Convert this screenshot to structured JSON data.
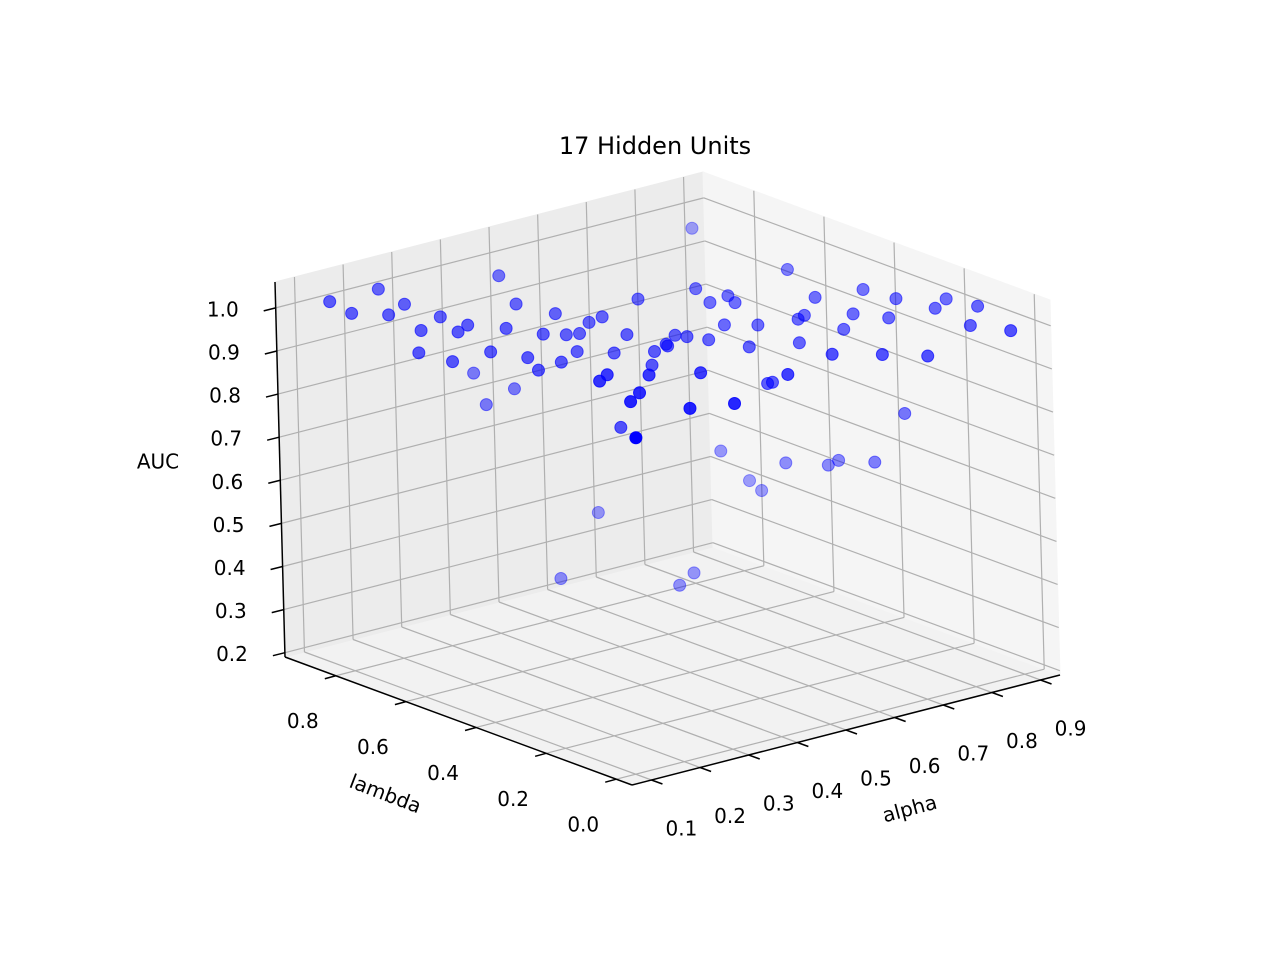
{
  "chart_data": {
    "type": "scatter3d",
    "title": "17 Hidden Units",
    "xlabel": "alpha",
    "ylabel": "lambda",
    "zlabel": "AUC",
    "xlim": [
      0.06,
      0.94
    ],
    "ylim": [
      -0.045,
      0.945
    ],
    "zlim": [
      0.19,
      1.06
    ],
    "xticks": [
      0.1,
      0.2,
      0.3,
      0.4,
      0.5,
      0.6,
      0.7,
      0.8,
      0.9
    ],
    "yticks": [
      {
        "value": 0,
        "label": "0.0"
      },
      0.2,
      0.4,
      0.6,
      0.8
    ],
    "zticks": [
      0.2,
      0.3,
      0.4,
      0.5,
      0.6,
      0.7,
      0.8,
      0.9,
      {
        "value": 1,
        "label": "1.0"
      }
    ],
    "grid": true,
    "series": [
      {
        "color": "#0000ff",
        "x": [
          0.16,
          0.26,
          0.19,
          0.23,
          0.27,
          0.26,
          0.3,
          0.24,
          0.3,
          0.32,
          0.28,
          0.45,
          0.33,
          0.46,
          0.45,
          0.37,
          0.42,
          0.37,
          0.37,
          0.49,
          0.41,
          0.45,
          0.41,
          0.45,
          0.47,
          0.45,
          0.49,
          0.51,
          0.49,
          0.31,
          0.34,
          0.51,
          0.57,
          0.53,
          0.51,
          0.39,
          0.32,
          0.28,
          0.45,
          0.14,
          0.54,
          0.55,
          0.58,
          0.59,
          0.84,
          0.66,
          0.66,
          0.46,
          0.33,
          0.62,
          0.66,
          0.69,
          0.69,
          0.66,
          0.4,
          0.83,
          0.88,
          0.89,
          0.7,
          0.66,
          0.67,
          0.56,
          0.82,
          0.72,
          0.74,
          0.76,
          0.79,
          0.87,
          0.9,
          0.9,
          0.68,
          0.79,
          0.81,
          0.86,
          0.91,
          0.74,
          0.84,
          0.87,
          0.91,
          0.79,
          0.9,
          0.93,
          0.9,
          0.93,
          0.89,
          0.69,
          0.61,
          0.76,
          0.79
        ],
        "y": [
          0.93,
          0.93,
          0.91,
          0.86,
          0.87,
          0.81,
          0.81,
          0.79,
          0.76,
          0.76,
          0.75,
          0.93,
          0.71,
          0.91,
          0.85,
          0.72,
          0.76,
          0.66,
          0.63,
          0.87,
          0.67,
          0.69,
          0.62,
          0.66,
          0.65,
          0.63,
          0.65,
          0.64,
          0.58,
          0.37,
          0.39,
          0.57,
          0.62,
          0.52,
          0.5,
          0.34,
          0.27,
          0.24,
          0.51,
          0.03,
          0.5,
          0.51,
          0.53,
          0.51,
          0.84,
          0.58,
          0.54,
          0.29,
          0.14,
          0.49,
          0.5,
          0.53,
          0.51,
          0.43,
          0.11,
          0.76,
          0.75,
          0.73,
          0.46,
          0.38,
          0.38,
          0.18,
          0.54,
          0.37,
          0.4,
          0.41,
          0.42,
          0.63,
          0.55,
          0.52,
          0.22,
          0.34,
          0.34,
          0.38,
          0.43,
          0.16,
          0.28,
          0.3,
          0.34,
          0.1,
          0.23,
          0.24,
          0.13,
          0.15,
          0,
          0.92,
          0.92,
          0.79,
          0.79
        ],
        "values": [
          0.99,
          0.99,
          0.96,
          0.96,
          0.97,
          0.93,
          0.95,
          0.89,
          0.93,
          0.94,
          0.87,
          0.74,
          0.89,
          0.67,
          0.99,
          0.93,
          0.96,
          0.88,
          0.86,
          0.71,
          0.92,
          0.95,
          0.87,
          0.91,
          0.91,
          0.88,
          0.93,
          0.94,
          0.88,
          0.93,
          0.93,
          0.92,
          0.97,
          0.89,
          0.87,
          0.93,
          0.93,
          0.93,
          0.74,
          0.95,
          0.91,
          0.9,
          0.91,
          0.91,
          0.99,
          0.98,
          0.96,
          0.93,
          0.93,
          0.9,
          0.92,
          0.97,
          0.96,
          0.89,
          0.93,
          0.5,
          0.42,
          0.4,
          0.92,
          0.82,
          0.82,
          0.93,
          0.99,
          0.9,
          0.94,
          0.94,
          0.97,
          0.5,
          0.51,
          0.53,
          0.93,
          0.92,
          0.95,
          0.98,
          0.55,
          0.93,
          0.95,
          0.98,
          0.69,
          0.93,
          0.97,
          0.98,
          0.96,
          0.99,
          0.99,
          0.35,
          0.22,
          0.2,
          0.22
        ]
      }
    ]
  }
}
